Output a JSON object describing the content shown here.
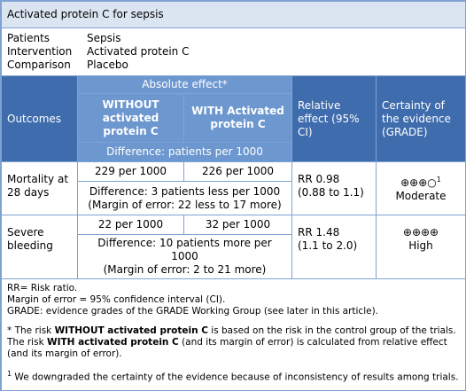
{
  "title": "Activated protein C for sepsis",
  "pico": [
    {
      "label": "Patients",
      "value": "Sepsis"
    },
    {
      "label": "Intervention",
      "value": "Activated protein C"
    },
    {
      "label": "Comparison",
      "value": "Placebo"
    }
  ],
  "header": {
    "outcomes": "Outcomes",
    "absolute_effect": "Absolute effect*",
    "without": "WITHOUT activated protein C",
    "with": "WITH Activated protein C",
    "difference": "Difference: patients per 1000",
    "relative": "Relative effect (95% CI)",
    "certainty": "Certainty of the evidence (GRADE)"
  },
  "rows": [
    {
      "outcome": "Mortality at 28 days",
      "without": "229 per 1000",
      "with": "226 per 1000",
      "difference": "Difference: 3 patients less per 1000",
      "margin": "(Margin of error: 22 less to 17 more)",
      "relative": "RR 0.98",
      "ci": "(0.88 to 1.1)",
      "symbols": "⊕⊕⊕○",
      "note": "1",
      "certainty": "Moderate"
    },
    {
      "outcome": "Severe bleeding",
      "without": "22 per 1000",
      "with": "32 per 1000",
      "difference": "Difference: 10 patients more per 1000",
      "margin": "(Margin of error: 2 to 21 more)",
      "relative": "RR 1.48",
      "ci": "(1.1 to 2.0)",
      "symbols": "⊕⊕⊕⊕",
      "certainty": "High"
    }
  ],
  "abbreviations": [
    "RR= Risk ratio.",
    "Margin of error = 95% confidence interval (CI).",
    "GRADE: evidence grades of the GRADE Working Group (see later in this article)."
  ],
  "footnote_star": [
    "* The risk ",
    "WITHOUT activated protein C",
    " is based on the risk in the control group of the trials. The risk ",
    "WITH activated protein C",
    " (and its margin of error) is calculated from relative effect (and its margin of error)."
  ],
  "footnote_1": {
    "mark": "1",
    "text": " We downgraded the certainty of the evidence because of inconsistency of results among trials."
  }
}
